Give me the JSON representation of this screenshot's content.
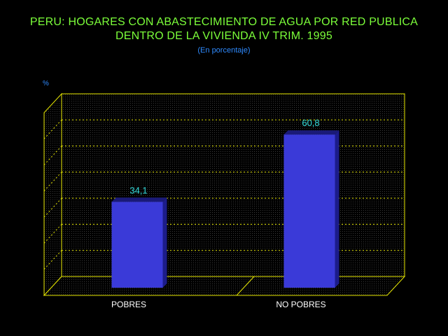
{
  "chart_data": {
    "type": "bar",
    "title_lines": [
      "PERU: HOGARES CON ABASTECIMIENTO DE AGUA POR RED PUBLICA",
      "DENTRO DE LA VIVIENDA IV TRIM. 1995"
    ],
    "subtitle": "(En porcentaje)",
    "ylabel": "%",
    "categories": [
      "POBRES",
      "NO POBRES"
    ],
    "values": [
      34.1,
      60.8
    ],
    "data_labels": [
      "34,1",
      "60,8"
    ],
    "ylim": [
      0,
      70
    ],
    "grid": true,
    "colors": {
      "title": "#7cff3a",
      "subtitle": "#2f8bff",
      "axes": "#e6e600",
      "gridlines": "#e6e600",
      "bar_front": "#3a3ad8",
      "bar_side": "#1c1c8a",
      "bar_top": "#1a1a78",
      "data_label": "#33dddd",
      "category_label": "#ffffff",
      "background": "#000000"
    }
  }
}
